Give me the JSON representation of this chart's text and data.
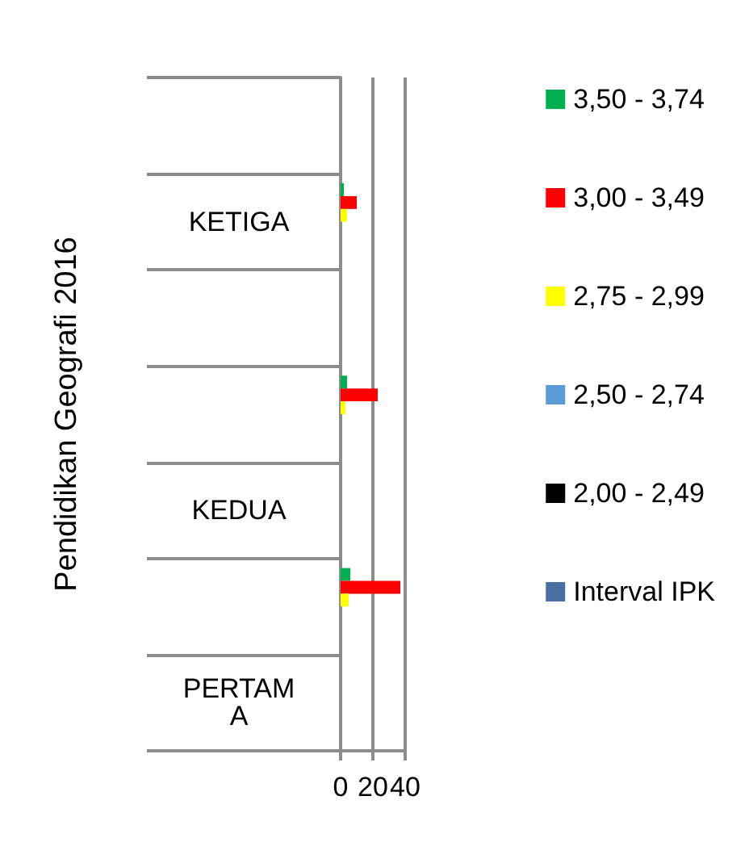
{
  "chart_data": {
    "type": "bar",
    "orientation": "horizontal",
    "ylabel": "Pendidikan Geografi 2016",
    "categories": [
      null,
      "KETIGA",
      null,
      null,
      "KEDUA",
      null,
      "PERTAMA"
    ],
    "series": [
      {
        "name": "3,50 - 3,74",
        "color": "#00b050",
        "values": [
          null,
          2,
          null,
          4,
          null,
          6,
          null
        ]
      },
      {
        "name": "3,00 - 3,49",
        "color": "#ff0000",
        "values": [
          null,
          10,
          null,
          23,
          null,
          37,
          null
        ]
      },
      {
        "name": "2,75 - 2,99",
        "color": "#ffff00",
        "values": [
          null,
          4,
          null,
          3,
          null,
          5,
          null
        ]
      },
      {
        "name": "2,50 - 2,74",
        "color": "#5b9bd5",
        "values": [
          null,
          null,
          null,
          null,
          null,
          null,
          null
        ]
      },
      {
        "name": "2,00 - 2,49",
        "color": "#000000",
        "values": [
          null,
          null,
          null,
          null,
          null,
          null,
          null
        ]
      },
      {
        "name": "Interval IPK",
        "color": "#4a6fa5",
        "values": [
          null,
          null,
          null,
          null,
          null,
          null,
          null
        ]
      }
    ],
    "xlim": [
      0,
      40
    ],
    "xticks": [
      0,
      20,
      40
    ],
    "grid": "x",
    "legend": "right"
  }
}
